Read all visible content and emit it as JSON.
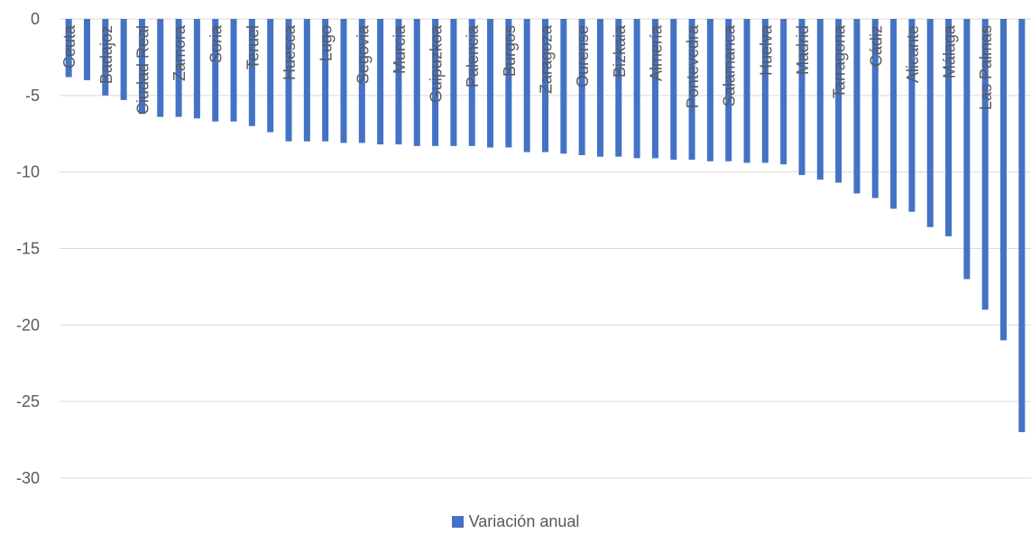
{
  "chart_data": {
    "type": "bar",
    "title": "",
    "xlabel": "",
    "ylabel": "",
    "ylim": [
      -30,
      0
    ],
    "yticks": [
      0,
      -5,
      -10,
      -15,
      -20,
      -25,
      -30
    ],
    "ytick_labels": [
      "0",
      "-5",
      "-10",
      "-15",
      "-20",
      "-25",
      "-30"
    ],
    "grid": true,
    "legend_position": "bottom",
    "color": "#4472C4",
    "category_labels_visible": [
      "Ceuta",
      "Badajoz",
      "Ciudad Real",
      "Zamora",
      "Soria",
      "Teruel",
      "Huesca",
      "Lugo",
      "Segovia",
      "Murcia",
      "Guipuzkoa",
      "Palencia",
      "Burgos",
      "Zaragoza",
      "Ourense",
      "Bizkaia",
      "Almería",
      "Pontevedra",
      "Salamanca",
      "Huelva",
      "Madrid",
      "Tarragona",
      "Cádiz",
      "Alicante",
      "Málaga",
      "Las Palmas"
    ],
    "series": [
      {
        "name": "Variación anual",
        "values": [
          -3.8,
          -4.0,
          -5.0,
          -5.3,
          -6.2,
          -6.4,
          -6.4,
          -6.5,
          -6.7,
          -6.7,
          -7.0,
          -7.4,
          -8.0,
          -8.0,
          -8.0,
          -8.1,
          -8.1,
          -8.2,
          -8.2,
          -8.3,
          -8.3,
          -8.3,
          -8.3,
          -8.4,
          -8.4,
          -8.7,
          -8.7,
          -8.8,
          -8.9,
          -9.0,
          -9.0,
          -9.1,
          -9.1,
          -9.2,
          -9.2,
          -9.3,
          -9.3,
          -9.4,
          -9.4,
          -9.5,
          -10.2,
          -10.5,
          -10.7,
          -11.4,
          -11.7,
          -12.4,
          -12.6,
          -13.6,
          -14.2,
          -17.0,
          -19.0,
          -21.0,
          -27.0
        ]
      }
    ]
  }
}
